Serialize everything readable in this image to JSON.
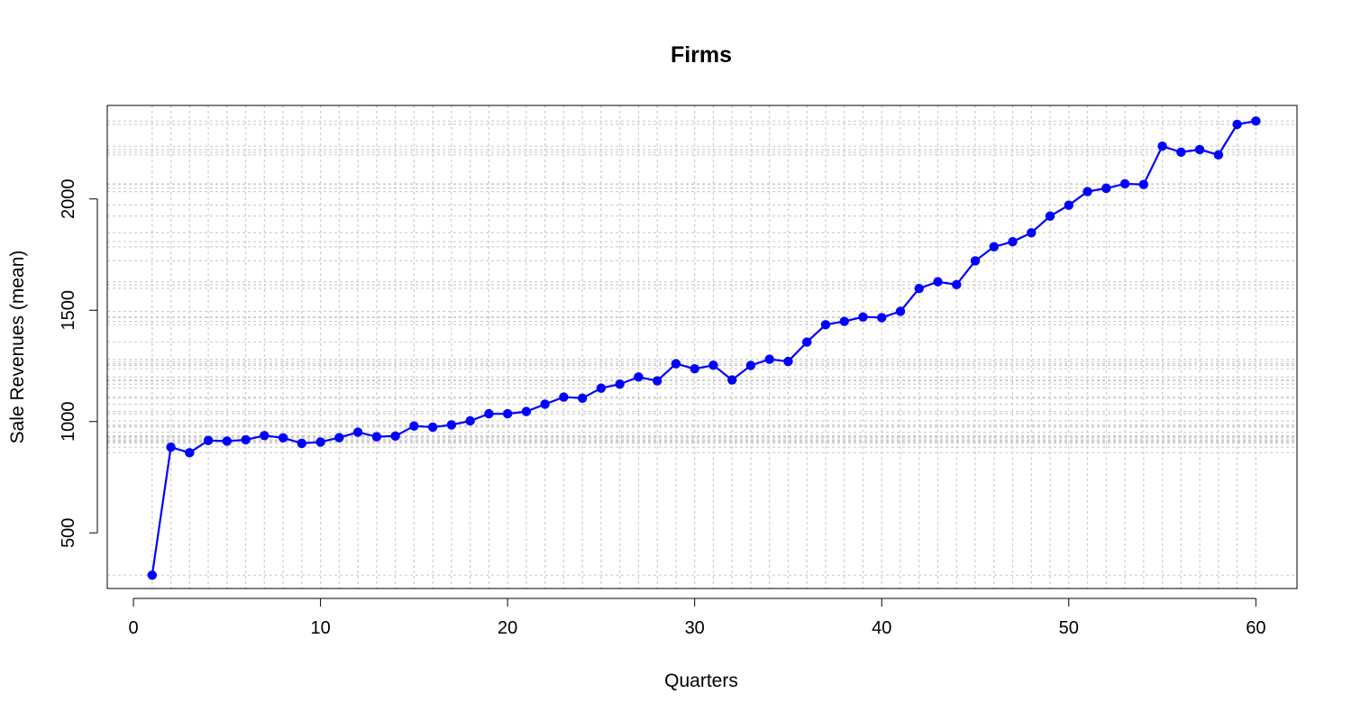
{
  "chart_data": {
    "type": "line",
    "title": "Firms",
    "xlabel": "Quarters",
    "ylabel": "Sale Revenues (mean)",
    "xlim": [
      -1.4,
      62.2
    ],
    "ylim": [
      250,
      2420
    ],
    "x_ticks": [
      0,
      10,
      20,
      30,
      40,
      50,
      60
    ],
    "y_ticks": [
      500,
      1000,
      1500,
      2000
    ],
    "grid": true,
    "series_color": "#0000ff",
    "x": [
      1,
      2,
      3,
      4,
      5,
      6,
      7,
      8,
      9,
      10,
      11,
      12,
      13,
      14,
      15,
      16,
      17,
      18,
      19,
      20,
      21,
      22,
      23,
      24,
      25,
      26,
      27,
      28,
      29,
      30,
      31,
      32,
      33,
      34,
      35,
      36,
      37,
      38,
      39,
      40,
      41,
      42,
      43,
      44,
      45,
      46,
      47,
      48,
      49,
      50,
      51,
      52,
      53,
      54,
      55,
      56,
      57,
      58,
      59,
      60
    ],
    "values": [
      310,
      885,
      860,
      915,
      912,
      918,
      937,
      927,
      902,
      908,
      928,
      952,
      932,
      935,
      980,
      975,
      985,
      1003,
      1035,
      1035,
      1045,
      1078,
      1110,
      1105,
      1150,
      1168,
      1200,
      1183,
      1260,
      1237,
      1253,
      1187,
      1252,
      1280,
      1270,
      1357,
      1435,
      1450,
      1470,
      1467,
      1495,
      1598,
      1628,
      1615,
      1722,
      1785,
      1808,
      1848,
      1923,
      1972,
      2033,
      2048,
      2068,
      2065,
      2237,
      2210,
      2222,
      2198,
      2335,
      2350
    ]
  }
}
